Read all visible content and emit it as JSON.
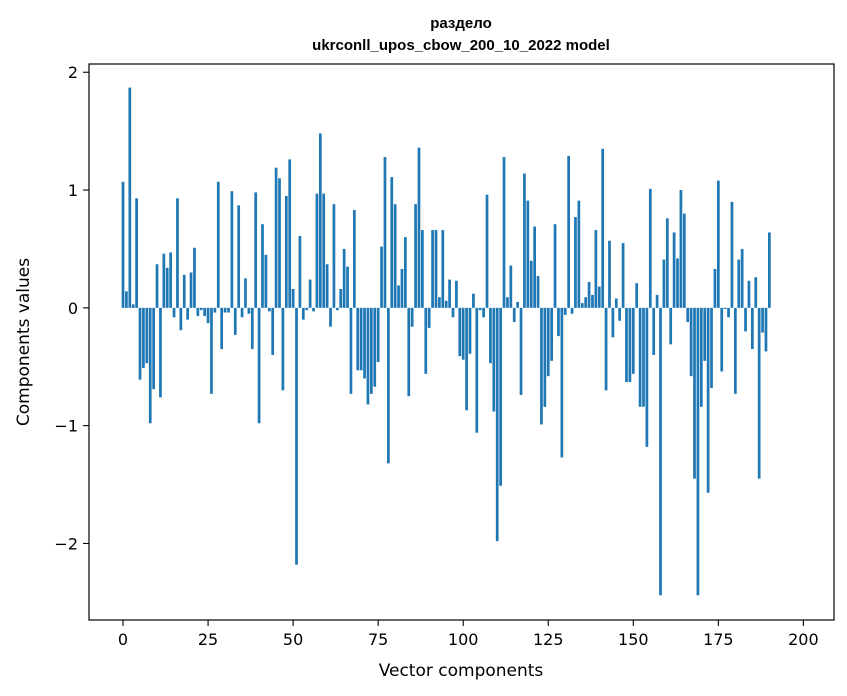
{
  "chart_data": {
    "type": "bar",
    "title_line1": "раздело",
    "title_line2": "ukrconll_upos_cbow_200_10_2022 model",
    "xlabel": "Vector components",
    "ylabel": "Components values",
    "xlim": [
      -10,
      209
    ],
    "ylim": [
      -2.65,
      2.07
    ],
    "x_ticks": [
      0,
      25,
      50,
      75,
      100,
      125,
      150,
      175,
      200
    ],
    "x_tick_labels": [
      "0",
      "25",
      "50",
      "75",
      "100",
      "125",
      "150",
      "175",
      "200"
    ],
    "y_ticks": [
      -2,
      -1,
      0,
      1,
      2
    ],
    "y_tick_labels": [
      "−2",
      "−1",
      "0",
      "1",
      "2"
    ],
    "bar_color": "#1f77b4",
    "grid": false,
    "legend": "none",
    "values": [
      1.07,
      0.14,
      1.87,
      0.03,
      0.93,
      -0.61,
      -0.51,
      -0.47,
      -0.98,
      -0.69,
      0.37,
      -0.76,
      0.46,
      0.34,
      0.47,
      -0.08,
      0.93,
      -0.19,
      0.28,
      -0.1,
      0.3,
      0.51,
      -0.07,
      -0.02,
      -0.07,
      -0.13,
      -0.73,
      -0.04,
      1.07,
      -0.35,
      -0.04,
      -0.04,
      0.99,
      -0.23,
      0.87,
      -0.08,
      0.25,
      -0.05,
      -0.35,
      0.98,
      -0.98,
      0.71,
      0.45,
      -0.03,
      -0.4,
      1.19,
      1.1,
      -0.7,
      0.95,
      1.26,
      0.16,
      -2.18,
      0.61,
      -0.1,
      -0.02,
      0.24,
      -0.03,
      0.97,
      1.48,
      0.97,
      0.37,
      -0.16,
      0.88,
      -0.02,
      0.16,
      0.5,
      0.35,
      -0.73,
      0.83,
      -0.53,
      -0.53,
      -0.6,
      -0.82,
      -0.73,
      -0.67,
      -0.46,
      0.52,
      1.28,
      -1.32,
      1.11,
      0.88,
      0.19,
      0.33,
      0.6,
      -0.75,
      -0.16,
      0.88,
      1.36,
      0.66,
      -0.56,
      -0.17,
      0.66,
      0.66,
      0.09,
      0.66,
      0.06,
      0.24,
      -0.08,
      0.23,
      -0.41,
      -0.44,
      -0.87,
      -0.39,
      0.12,
      -1.06,
      -0.02,
      -0.08,
      0.96,
      -0.47,
      -0.88,
      -1.98,
      -1.51,
      1.28,
      0.09,
      0.36,
      -0.12,
      0.05,
      -0.74,
      1.14,
      0.91,
      0.4,
      0.69,
      0.27,
      -0.99,
      -0.84,
      -0.58,
      -0.45,
      0.71,
      -0.24,
      -1.27,
      -0.06,
      1.29,
      -0.05,
      0.77,
      0.91,
      0.04,
      0.09,
      0.22,
      0.11,
      0.66,
      0.18,
      1.35,
      -0.7,
      0.57,
      -0.25,
      0.08,
      -0.11,
      0.55,
      -0.63,
      -0.63,
      -0.56,
      0.21,
      -0.84,
      -0.84,
      -1.18,
      1.01,
      -0.4,
      0.11,
      -2.44,
      0.41,
      0.76,
      -0.31,
      0.64,
      0.42,
      1.0,
      0.8,
      -0.12,
      -0.58,
      -1.45,
      -2.44,
      -0.84,
      -0.45,
      -1.57,
      -0.68,
      0.33,
      1.08,
      -0.54,
      -0.01,
      -0.08,
      0.9,
      -0.73,
      0.41,
      0.5,
      -0.2,
      0.23,
      -0.35,
      0.26,
      -1.45,
      -0.21,
      -0.37,
      0.64
    ]
  }
}
